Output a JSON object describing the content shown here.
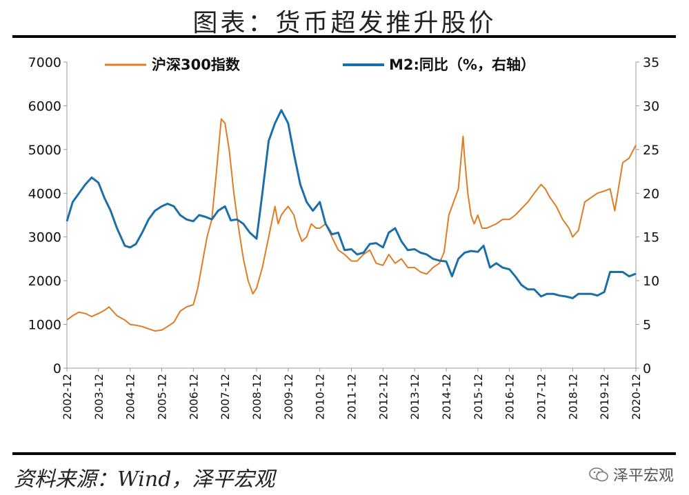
{
  "chart_data": {
    "type": "line",
    "title": "图表：货币超发推升股价",
    "xlabel": "",
    "ylabel": "",
    "ylabel_right": "",
    "ylim": [
      0,
      7000
    ],
    "ylim_right": [
      0,
      35
    ],
    "yticks_left": [
      "0",
      "1000",
      "2000",
      "3000",
      "4000",
      "5000",
      "6000",
      "7000"
    ],
    "yticks_right": [
      "0",
      "5",
      "10",
      "15",
      "20",
      "25",
      "30",
      "35"
    ],
    "x_tick_labels": [
      "2002-12",
      "2003-12",
      "2004-12",
      "2005-12",
      "2006-12",
      "2007-12",
      "2008-12",
      "2009-12",
      "2010-12",
      "2011-12",
      "2012-12",
      "2013-12",
      "2014-12",
      "2015-12",
      "2016-12",
      "2017-12",
      "2018-12",
      "2019-12",
      "2020-12"
    ],
    "x_range": [
      2002.917,
      2020.917
    ],
    "legend_position": "top",
    "series": [
      {
        "name": "沪深300指数",
        "axis": "left",
        "color": "#E07B22",
        "x": [
          2002.917,
          2003.1,
          2003.3,
          2003.5,
          2003.7,
          2003.917,
          2004.1,
          2004.25,
          2004.5,
          2004.75,
          2004.917,
          2005.1,
          2005.3,
          2005.5,
          2005.7,
          2005.917,
          2006.1,
          2006.3,
          2006.5,
          2006.7,
          2006.917,
          2007.05,
          2007.2,
          2007.35,
          2007.5,
          2007.65,
          2007.8,
          2007.917,
          2008.05,
          2008.2,
          2008.35,
          2008.5,
          2008.65,
          2008.8,
          2008.917,
          2009.1,
          2009.3,
          2009.5,
          2009.6,
          2009.7,
          2009.8,
          2009.917,
          2010.1,
          2010.2,
          2010.35,
          2010.5,
          2010.65,
          2010.8,
          2010.917,
          2011.1,
          2011.3,
          2011.5,
          2011.7,
          2011.917,
          2012.1,
          2012.3,
          2012.5,
          2012.7,
          2012.917,
          2013.1,
          2013.3,
          2013.5,
          2013.7,
          2013.917,
          2014.1,
          2014.3,
          2014.5,
          2014.7,
          2014.85,
          2015.0,
          2015.15,
          2015.3,
          2015.45,
          2015.5,
          2015.6,
          2015.7,
          2015.8,
          2015.917,
          2016.05,
          2016.2,
          2016.5,
          2016.7,
          2016.917,
          2017.1,
          2017.3,
          2017.5,
          2017.7,
          2017.917,
          2018.05,
          2018.2,
          2018.4,
          2018.6,
          2018.8,
          2018.917,
          2019.1,
          2019.3,
          2019.5,
          2019.7,
          2019.917,
          2020.1,
          2020.25,
          2020.5,
          2020.7,
          2020.917
        ],
        "y": [
          1100,
          1200,
          1280,
          1250,
          1180,
          1250,
          1320,
          1400,
          1200,
          1100,
          1000,
          980,
          950,
          900,
          850,
          870,
          950,
          1050,
          1300,
          1400,
          1450,
          1800,
          2400,
          3000,
          3400,
          4500,
          5700,
          5600,
          5000,
          4000,
          3200,
          2500,
          2000,
          1700,
          1830,
          2300,
          3000,
          3700,
          3300,
          3500,
          3600,
          3700,
          3500,
          3200,
          2900,
          3000,
          3300,
          3200,
          3200,
          3300,
          3000,
          2700,
          2600,
          2450,
          2450,
          2600,
          2700,
          2400,
          2350,
          2600,
          2400,
          2500,
          2300,
          2300,
          2200,
          2150,
          2300,
          2400,
          2650,
          3500,
          3800,
          4100,
          5300,
          4800,
          4000,
          3500,
          3300,
          3500,
          3200,
          3200,
          3300,
          3400,
          3400,
          3500,
          3650,
          3800,
          4000,
          4200,
          4100,
          3900,
          3700,
          3400,
          3200,
          3000,
          3150,
          3800,
          3900,
          4000,
          4050,
          4100,
          3600,
          4700,
          4800,
          5100
        ]
      },
      {
        "name": "M2:同比（%，右轴）",
        "axis": "right",
        "color": "#1A6FAA",
        "x": [
          2002.917,
          2003.1,
          2003.3,
          2003.5,
          2003.7,
          2003.917,
          2004.1,
          2004.3,
          2004.5,
          2004.75,
          2004.917,
          2005.1,
          2005.3,
          2005.5,
          2005.7,
          2005.917,
          2006.1,
          2006.3,
          2006.5,
          2006.7,
          2006.917,
          2007.1,
          2007.3,
          2007.5,
          2007.7,
          2007.917,
          2008.1,
          2008.3,
          2008.5,
          2008.7,
          2008.917,
          2009.1,
          2009.3,
          2009.5,
          2009.7,
          2009.917,
          2010.1,
          2010.3,
          2010.5,
          2010.7,
          2010.917,
          2011.1,
          2011.3,
          2011.5,
          2011.7,
          2011.917,
          2012.1,
          2012.3,
          2012.5,
          2012.7,
          2012.917,
          2013.1,
          2013.3,
          2013.5,
          2013.7,
          2013.917,
          2014.1,
          2014.3,
          2014.5,
          2014.7,
          2014.917,
          2015.1,
          2015.3,
          2015.5,
          2015.7,
          2015.917,
          2016.1,
          2016.3,
          2016.5,
          2016.7,
          2016.917,
          2017.1,
          2017.3,
          2017.5,
          2017.7,
          2017.917,
          2018.1,
          2018.3,
          2018.5,
          2018.7,
          2018.917,
          2019.1,
          2019.3,
          2019.5,
          2019.7,
          2019.917,
          2020.1,
          2020.3,
          2020.5,
          2020.7,
          2020.917
        ],
        "y": [
          16.8,
          19.0,
          20.0,
          21.0,
          21.8,
          21.2,
          19.5,
          18.0,
          16.0,
          14.0,
          13.8,
          14.2,
          15.5,
          17.0,
          18.0,
          18.5,
          18.8,
          18.5,
          17.5,
          17.0,
          16.8,
          17.5,
          17.3,
          17.0,
          18.0,
          18.5,
          16.9,
          17.0,
          16.5,
          15.5,
          14.8,
          20.0,
          26.0,
          28.0,
          29.5,
          28.0,
          24.5,
          21.0,
          19.0,
          18.0,
          19.0,
          16.5,
          15.3,
          15.5,
          13.5,
          13.6,
          13.0,
          13.2,
          14.2,
          14.3,
          13.8,
          15.5,
          16.0,
          14.5,
          13.5,
          13.6,
          13.2,
          13.0,
          12.5,
          12.3,
          12.2,
          10.5,
          12.5,
          13.2,
          13.4,
          13.3,
          14.0,
          11.5,
          12.0,
          11.5,
          11.3,
          10.5,
          9.5,
          9.0,
          9.0,
          8.2,
          8.5,
          8.5,
          8.3,
          8.2,
          8.0,
          8.5,
          8.5,
          8.5,
          8.3,
          8.7,
          11.0,
          11.0,
          11.0,
          10.5,
          10.8
        ]
      }
    ]
  },
  "source_note": "资料来源：Wind，泽平宏观",
  "watermark": "泽平宏观"
}
